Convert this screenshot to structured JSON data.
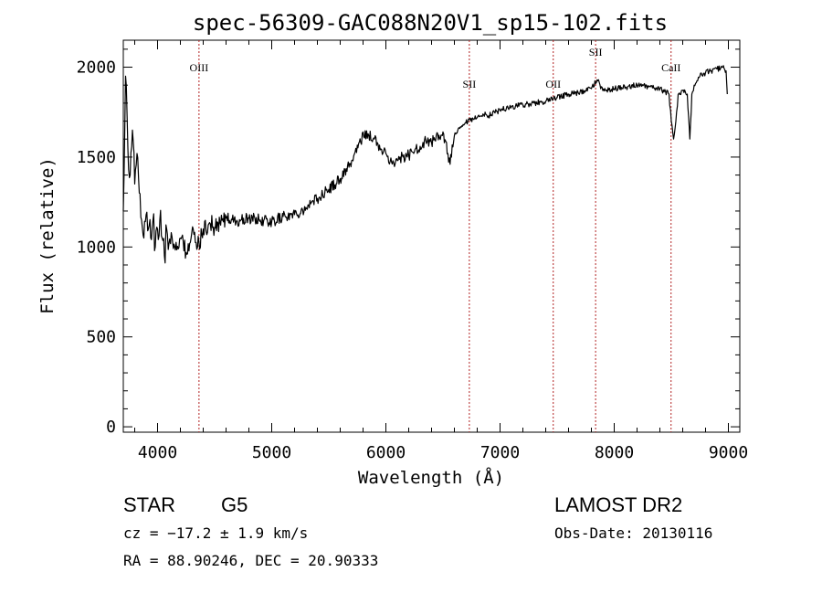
{
  "chart_data": {
    "type": "line",
    "title": "spec-56309-GAC088N20V1_sp15-102.fits",
    "xlabel": "Wavelength (Å)",
    "ylabel": "Flux (relative)",
    "xlim": [
      3700,
      9100
    ],
    "ylim": [
      -30,
      2150
    ],
    "xticks": [
      4000,
      5000,
      6000,
      7000,
      8000,
      9000
    ],
    "yticks": [
      0,
      500,
      1000,
      1500,
      2000
    ],
    "series": [
      {
        "color": "#000000",
        "x": [
          3700,
          3720,
          3740,
          3760,
          3780,
          3800,
          3820,
          3840,
          3860,
          3880,
          3900,
          3920,
          3940,
          3960,
          3980,
          4000,
          4020,
          4040,
          4060,
          4080,
          4100,
          4120,
          4150,
          4200,
          4250,
          4300,
          4350,
          4400,
          4450,
          4500,
          4600,
          4700,
          4800,
          4900,
          5000,
          5100,
          5200,
          5300,
          5400,
          5500,
          5600,
          5700,
          5780,
          5800,
          5850,
          5900,
          5950,
          6000,
          6050,
          6100,
          6150,
          6200,
          6250,
          6300,
          6350,
          6400,
          6500,
          6562,
          6600,
          6700,
          6800,
          6850,
          6900,
          6950,
          7000,
          7100,
          7200,
          7300,
          7400,
          7500,
          7600,
          7700,
          7800,
          7850,
          7900,
          8000,
          8100,
          8200,
          8300,
          8400,
          8480,
          8500,
          8520,
          8540,
          8560,
          8600,
          8640,
          8662,
          8680,
          8700,
          8750,
          8800,
          8850,
          8900,
          8950,
          8980,
          8990
        ],
        "y": [
          1200,
          1950,
          1550,
          1400,
          1650,
          1350,
          1520,
          1300,
          1150,
          1050,
          1180,
          1100,
          1050,
          1150,
          1000,
          1100,
          1150,
          1050,
          950,
          1100,
          1020,
          1080,
          1000,
          1050,
          970,
          1080,
          1000,
          1100,
          1130,
          1110,
          1160,
          1140,
          1160,
          1150,
          1140,
          1170,
          1180,
          1220,
          1270,
          1320,
          1380,
          1480,
          1580,
          1640,
          1620,
          1600,
          1540,
          1520,
          1470,
          1480,
          1500,
          1510,
          1530,
          1560,
          1590,
          1580,
          1640,
          1460,
          1620,
          1690,
          1720,
          1740,
          1730,
          1750,
          1760,
          1780,
          1790,
          1800,
          1810,
          1830,
          1850,
          1860,
          1880,
          1930,
          1870,
          1880,
          1890,
          1900,
          1890,
          1880,
          1850,
          1700,
          1600,
          1700,
          1850,
          1870,
          1850,
          1600,
          1850,
          1900,
          1950,
          1970,
          1980,
          1990,
          2000,
          1980,
          1850
        ]
      }
    ],
    "lines": [
      {
        "label": "OIII",
        "x": 4363
      },
      {
        "label": "SII",
        "x": 6731
      },
      {
        "label": "OII",
        "x": 7466
      },
      {
        "label": "SII",
        "x": 7837
      },
      {
        "label": "CaII",
        "x": 8498
      }
    ]
  },
  "info": {
    "object_type": "STAR",
    "subclass": "G5",
    "survey": "LAMOST DR2",
    "velocity": "cz = −17.2 ± 1.9 km/s",
    "obs_date": "Obs-Date: 20130116",
    "coords": "RA =  88.90246, DEC =  20.90333"
  },
  "colors": {
    "spectrum": "#000000",
    "line_marker": "#b22222",
    "axis": "#000000"
  }
}
